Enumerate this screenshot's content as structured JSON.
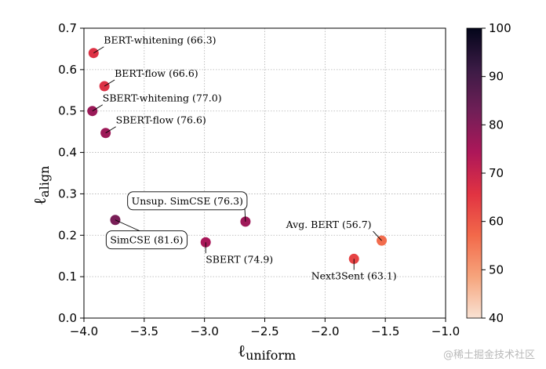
{
  "chart_data": {
    "type": "scatter",
    "title": "",
    "xlabel_main": "ℓ",
    "xlabel_sub": "uniform",
    "ylabel_main": "ℓ",
    "ylabel_sub": "align",
    "xlim": [
      -4.0,
      -1.0
    ],
    "ylim": [
      0.0,
      0.7
    ],
    "xticks": [
      "−4.0",
      "−3.5",
      "−3.0",
      "−2.5",
      "−2.0",
      "−1.5",
      "−1.0"
    ],
    "xtick_values": [
      -4.0,
      -3.5,
      -3.0,
      -2.5,
      -2.0,
      -1.5,
      -1.0
    ],
    "yticks": [
      "0.0",
      "0.1",
      "0.2",
      "0.3",
      "0.4",
      "0.5",
      "0.6",
      "0.7"
    ],
    "ytick_values": [
      0.0,
      0.1,
      0.2,
      0.3,
      0.4,
      0.5,
      0.6,
      0.7
    ],
    "grid": true,
    "colorbar": {
      "range": [
        40,
        100
      ],
      "ticks": [
        "40",
        "50",
        "60",
        "70",
        "80",
        "90",
        "100"
      ],
      "tick_values": [
        40,
        50,
        60,
        70,
        80,
        90,
        100
      ],
      "stops": [
        "#f9e2d3",
        "#f6a47c",
        "#f2694a",
        "#e13342",
        "#ad1759",
        "#701f57",
        "#3b1b45",
        "#03051a"
      ]
    },
    "points": [
      {
        "label": "BERT-whitening (66.3)",
        "x": -3.92,
        "y": 0.64,
        "score": 66.3,
        "boxed": false
      },
      {
        "label": "BERT-flow (66.6)",
        "x": -3.83,
        "y": 0.56,
        "score": 66.6,
        "boxed": false
      },
      {
        "label": "SBERT-whitening (77.0)",
        "x": -3.93,
        "y": 0.5,
        "score": 77.0,
        "boxed": false
      },
      {
        "label": "SBERT-flow (76.6)",
        "x": -3.82,
        "y": 0.447,
        "score": 76.6,
        "boxed": false
      },
      {
        "label": "Unsup. SimCSE (76.3)",
        "x": -2.66,
        "y": 0.233,
        "score": 76.3,
        "boxed": true
      },
      {
        "label": "SimCSE (81.6)",
        "x": -3.74,
        "y": 0.237,
        "score": 81.6,
        "boxed": true
      },
      {
        "label": "SBERT (74.9)",
        "x": -2.99,
        "y": 0.183,
        "score": 74.9,
        "boxed": false
      },
      {
        "label": "Avg. BERT (56.7)",
        "x": -1.53,
        "y": 0.187,
        "score": 56.7,
        "boxed": false
      },
      {
        "label": "Next3Sent (63.1)",
        "x": -1.76,
        "y": 0.143,
        "score": 63.1,
        "boxed": false
      }
    ]
  },
  "watermark": "@稀土掘金技术社区"
}
